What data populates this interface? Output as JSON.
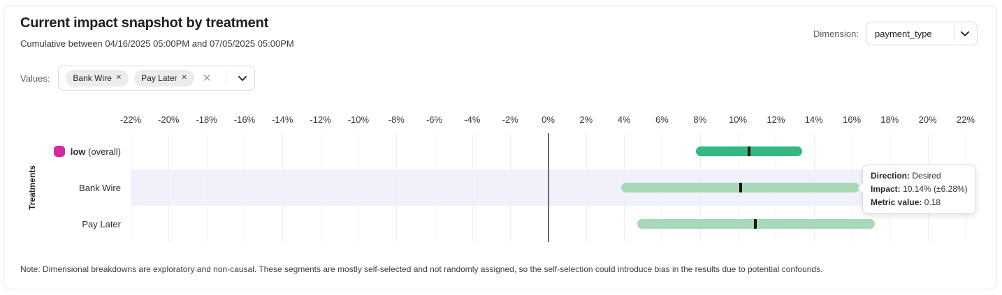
{
  "header": {
    "title": "Current impact snapshot by treatment",
    "subtitle": "Cumulative between 04/16/2025 05:00PM and 07/05/2025 05:00PM",
    "dimension_label": "Dimension:",
    "dimension_value": "payment_type"
  },
  "filters": {
    "values_label": "Values:",
    "chips": [
      {
        "label": "Bank Wire",
        "remove_icon": "✕"
      },
      {
        "label": "Pay Later",
        "remove_icon": "✕"
      }
    ],
    "clear_icon": "✕"
  },
  "chart_data": {
    "type": "bar",
    "orientation": "horizontal-interval",
    "ylabel": "Treatments",
    "x_axis": {
      "min": -22,
      "max": 22,
      "step": 2,
      "tick_suffix": "%"
    },
    "grid": true,
    "colors": {
      "overall_bar": "#35b783",
      "segment_bar": "#a7d8b7",
      "marker": "#101010",
      "legend_overall": "#d12ba6",
      "highlight_band": "#f1f1fb"
    },
    "rows": [
      {
        "label_strong": "low",
        "label": " (overall)",
        "legend_color": "#d12ba6",
        "impact": 10.6,
        "ci_low": 7.8,
        "ci_high": 13.4,
        "bar_color": "#35b783",
        "highlighted": false
      },
      {
        "label_strong": "",
        "label": "Bank Wire",
        "legend_color": null,
        "impact": 10.14,
        "ci_low": 3.86,
        "ci_high": 16.42,
        "bar_color": "#a7d8b7",
        "highlighted": true
      },
      {
        "label_strong": "",
        "label": "Pay Later",
        "legend_color": null,
        "impact": 10.9,
        "ci_low": 4.7,
        "ci_high": 17.2,
        "bar_color": "#a7d8b7",
        "highlighted": false
      }
    ]
  },
  "tooltip": {
    "direction_label": "Direction:",
    "direction_value": "Desired",
    "impact_label": "Impact:",
    "impact_value": "10.14% (±6.28%)",
    "metric_label": "Metric value:",
    "metric_value": "0.18"
  },
  "note": "Note: Dimensional breakdowns are exploratory and non-causal. These segments are mostly self-selected and not randomly assigned, so the self-selection could introduce bias in the results due to potential confounds."
}
